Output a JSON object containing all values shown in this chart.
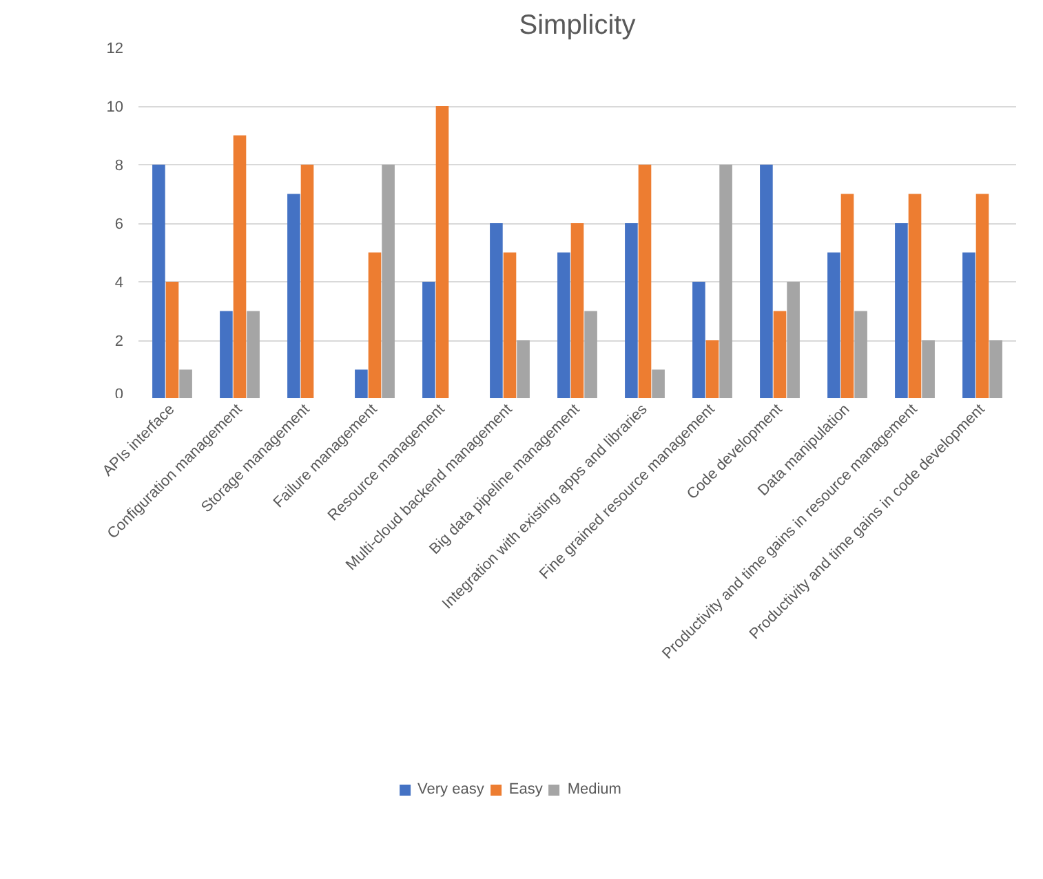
{
  "chart_data": {
    "type": "bar",
    "title": "Simplicity",
    "categories": [
      "APIs interface",
      "Configuration management",
      "Storage management",
      "Failure management",
      "Resource management",
      "Multi-cloud backend management",
      "Big data pipeline management",
      "Integration with existing apps and libraries",
      "Fine grained resource management",
      "Code development",
      "Data manipulation",
      "Productivity and time gains in resource management",
      "Productivity and time gains in code development"
    ],
    "series": [
      {
        "name": "Very easy",
        "color": "#4472c4",
        "values": [
          8,
          3,
          7,
          1,
          4,
          6,
          5,
          6,
          4,
          8,
          5,
          6,
          5
        ]
      },
      {
        "name": "Easy",
        "color": "#ed7d31",
        "values": [
          4,
          9,
          8,
          5,
          10,
          5,
          6,
          8,
          2,
          3,
          7,
          7,
          7
        ]
      },
      {
        "name": "Medium",
        "color": "#a5a5a5",
        "values": [
          1,
          3,
          0,
          8,
          0,
          2,
          3,
          1,
          8,
          4,
          3,
          2,
          2
        ]
      }
    ],
    "ylim": [
      0,
      12
    ],
    "yticks": [
      0,
      2,
      4,
      6,
      8,
      10,
      12
    ],
    "grid": "y",
    "legend": "bottom"
  }
}
